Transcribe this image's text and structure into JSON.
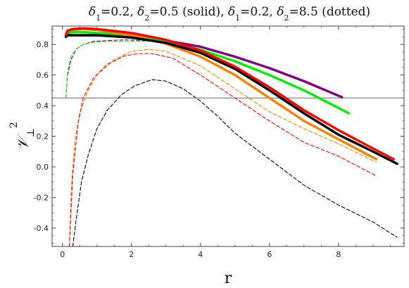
{
  "chart_data": {
    "type": "line",
    "title": "δ₁=0.2, δ₂=0.5 (solid), δ₁=0.2, δ₂=8.5 (dotted)",
    "title_parts": [
      {
        "text": "δ",
        "italic": true
      },
      {
        "text": "1",
        "sub": true
      },
      {
        "text": "=0.2, "
      },
      {
        "text": "δ",
        "italic": true
      },
      {
        "text": "2",
        "sub": true
      },
      {
        "text": "=0.5 (solid), "
      },
      {
        "text": "δ",
        "italic": true
      },
      {
        "text": "1",
        "sub": true
      },
      {
        "text": "=0.2, "
      },
      {
        "text": "δ",
        "italic": true
      },
      {
        "text": "2",
        "sub": true
      },
      {
        "text": "=8.5 (dotted)"
      }
    ],
    "xlabel": "r",
    "ylabel": "𝒱⊥²",
    "ylabel_parts": {
      "base": "𝒱",
      "sub": "⊥",
      "sup": "2"
    },
    "xlim": [
      -0.3,
      9.9
    ],
    "ylim": [
      -0.52,
      0.92
    ],
    "xticks": [
      0,
      2,
      4,
      6,
      8
    ],
    "xtick_labels": [
      "0",
      "2",
      "4",
      "6",
      "8"
    ],
    "yticks": [
      -0.4,
      -0.2,
      0.0,
      0.2,
      0.4,
      0.6,
      0.8
    ],
    "ytick_labels": [
      "-0.4",
      "-0.2",
      "0.0",
      "0.2",
      "0.4",
      "0.6",
      "0.8"
    ],
    "reference_line_y": 0.45,
    "grid": false,
    "series": [
      {
        "color": "#800080",
        "style": "dashed",
        "points": [
          [
            0.1,
            0.45
          ],
          [
            0.15,
            0.6
          ],
          [
            0.25,
            0.7
          ],
          [
            0.4,
            0.77
          ],
          [
            0.6,
            0.8
          ],
          [
            0.9,
            0.82
          ],
          [
            1.3,
            0.825
          ],
          [
            1.8,
            0.83
          ],
          [
            2.5,
            0.825
          ]
        ]
      },
      {
        "color": "#00ee00",
        "style": "dashed",
        "points": [
          [
            0.1,
            0.45
          ],
          [
            0.15,
            0.62
          ],
          [
            0.25,
            0.72
          ],
          [
            0.4,
            0.77
          ],
          [
            0.6,
            0.8
          ],
          [
            0.9,
            0.815
          ],
          [
            1.3,
            0.82
          ],
          [
            1.8,
            0.822
          ],
          [
            2.5,
            0.82
          ]
        ]
      },
      {
        "color": "#ff8000",
        "style": "dashed",
        "points": [
          [
            0.2,
            -0.52
          ],
          [
            0.27,
            -0.1
          ],
          [
            0.35,
            0.15
          ],
          [
            0.5,
            0.35
          ],
          [
            0.75,
            0.5
          ],
          [
            1.0,
            0.6
          ],
          [
            1.5,
            0.7
          ],
          [
            2.0,
            0.755
          ],
          [
            2.5,
            0.768
          ],
          [
            3.0,
            0.755
          ],
          [
            4.0,
            0.66
          ],
          [
            5.0,
            0.51
          ],
          [
            6.0,
            0.36
          ],
          [
            7.0,
            0.25
          ],
          [
            8.0,
            0.15
          ],
          [
            9.1,
            0.03
          ]
        ]
      },
      {
        "color": "#ff0000",
        "style": "dashed",
        "points": [
          [
            0.2,
            -0.52
          ],
          [
            0.3,
            -0.05
          ],
          [
            0.45,
            0.28
          ],
          [
            0.6,
            0.45
          ],
          [
            0.9,
            0.58
          ],
          [
            1.3,
            0.67
          ],
          [
            1.8,
            0.725
          ],
          [
            2.2,
            0.74
          ],
          [
            2.6,
            0.74
          ],
          [
            3.2,
            0.71
          ],
          [
            4.0,
            0.6
          ],
          [
            5.0,
            0.45
          ],
          [
            6.0,
            0.3
          ],
          [
            7.0,
            0.16
          ],
          [
            8.0,
            0.07
          ],
          [
            9.1,
            -0.06
          ]
        ]
      },
      {
        "color": "#000000",
        "style": "dashed",
        "points": [
          [
            0.3,
            -0.52
          ],
          [
            0.4,
            -0.34
          ],
          [
            0.55,
            -0.1
          ],
          [
            0.75,
            0.08
          ],
          [
            1.0,
            0.25
          ],
          [
            1.3,
            0.37
          ],
          [
            1.7,
            0.47
          ],
          [
            2.1,
            0.53
          ],
          [
            2.6,
            0.57
          ],
          [
            3.0,
            0.56
          ],
          [
            3.5,
            0.51
          ],
          [
            4.0,
            0.43
          ],
          [
            4.5,
            0.33
          ],
          [
            5.0,
            0.22
          ],
          [
            6.0,
            0.05
          ],
          [
            7.0,
            -0.12
          ],
          [
            8.0,
            -0.25
          ],
          [
            9.0,
            -0.36
          ],
          [
            9.7,
            -0.46
          ]
        ]
      },
      {
        "color": "#800080",
        "style": "solid",
        "points": [
          [
            0.1,
            0.85
          ],
          [
            0.15,
            0.86
          ],
          [
            0.3,
            0.86
          ],
          [
            0.6,
            0.86
          ],
          [
            1.0,
            0.86
          ],
          [
            2.0,
            0.85
          ],
          [
            3.0,
            0.825
          ],
          [
            4.0,
            0.785
          ],
          [
            5.0,
            0.72
          ],
          [
            6.0,
            0.645
          ],
          [
            7.0,
            0.56
          ],
          [
            8.1,
            0.455
          ]
        ]
      },
      {
        "color": "#00ee00",
        "style": "solid",
        "points": [
          [
            0.1,
            0.86
          ],
          [
            0.15,
            0.875
          ],
          [
            0.3,
            0.88
          ],
          [
            0.6,
            0.88
          ],
          [
            1.0,
            0.875
          ],
          [
            2.0,
            0.86
          ],
          [
            3.0,
            0.82
          ],
          [
            4.0,
            0.765
          ],
          [
            5.0,
            0.69
          ],
          [
            6.0,
            0.6
          ],
          [
            7.0,
            0.5
          ],
          [
            8.3,
            0.35
          ]
        ]
      },
      {
        "color": "#ff8000",
        "style": "solid",
        "points": [
          [
            0.1,
            0.86
          ],
          [
            0.15,
            0.89
          ],
          [
            0.3,
            0.895
          ],
          [
            0.6,
            0.9
          ],
          [
            1.0,
            0.895
          ],
          [
            2.0,
            0.86
          ],
          [
            3.0,
            0.805
          ],
          [
            4.0,
            0.72
          ],
          [
            5.0,
            0.6
          ],
          [
            6.0,
            0.45
          ],
          [
            7.0,
            0.3
          ],
          [
            8.0,
            0.18
          ],
          [
            9.1,
            0.05
          ]
        ]
      },
      {
        "color": "#000000",
        "style": "solid",
        "points": [
          [
            0.1,
            0.85
          ],
          [
            0.15,
            0.86
          ],
          [
            0.3,
            0.86
          ],
          [
            0.6,
            0.86
          ],
          [
            1.0,
            0.86
          ],
          [
            2.0,
            0.845
          ],
          [
            3.0,
            0.81
          ],
          [
            4.0,
            0.745
          ],
          [
            5.0,
            0.64
          ],
          [
            6.0,
            0.5
          ],
          [
            7.0,
            0.35
          ],
          [
            8.0,
            0.21
          ],
          [
            9.0,
            0.1
          ],
          [
            9.7,
            0.02
          ]
        ]
      },
      {
        "color": "#ff0000",
        "style": "solid",
        "points": [
          [
            0.1,
            0.86
          ],
          [
            0.15,
            0.89
          ],
          [
            0.3,
            0.9
          ],
          [
            0.6,
            0.905
          ],
          [
            1.0,
            0.9
          ],
          [
            2.0,
            0.875
          ],
          [
            3.0,
            0.83
          ],
          [
            4.0,
            0.76
          ],
          [
            5.0,
            0.655
          ],
          [
            6.0,
            0.52
          ],
          [
            7.0,
            0.37
          ],
          [
            8.0,
            0.24
          ],
          [
            9.0,
            0.12
          ],
          [
            9.6,
            0.05
          ]
        ]
      }
    ]
  }
}
